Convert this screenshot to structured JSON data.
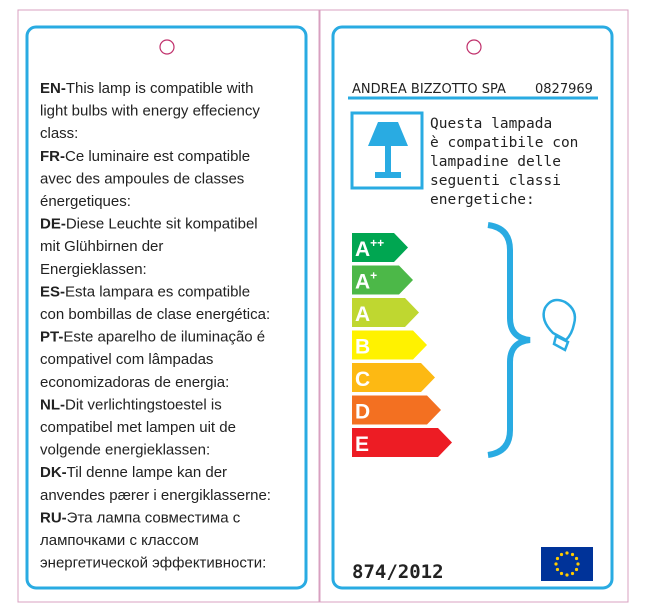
{
  "left": {
    "languages": [
      {
        "code": "EN-",
        "lines": [
          "This lamp is compatible with",
          "light bulbs with energy effeciency",
          "class:"
        ]
      },
      {
        "code": "FR-",
        "lines": [
          "Ce luminaire est compatible",
          "avec des ampoules de classes",
          "énergetiques:"
        ]
      },
      {
        "code": "DE-",
        "lines": [
          "Diese Leuchte sit kompatibel",
          "mit Glühbirnen der",
          "Energieklassen:"
        ]
      },
      {
        "code": "ES-",
        "lines": [
          "Esta lampara es compatible",
          "con bombillas de clase energética:"
        ]
      },
      {
        "code": "PT-",
        "lines": [
          "Este aparelho de iluminação é",
          "compativel com lâmpadas",
          "economizadoras de energia:"
        ]
      },
      {
        "code": "NL-",
        "lines": [
          "Dit verlichtingstoestel is",
          "compatibel met lampen uit de",
          "volgende energieklassen:"
        ]
      },
      {
        "code": "DK-",
        "lines": [
          "Til denne lampe kan der",
          "anvendes pærer i energiklasserne:"
        ]
      },
      {
        "code": "RU-",
        "lines": [
          "Эта лампа совместима с",
          "лампочками с классом",
          "энергетической эффективности:"
        ]
      }
    ]
  },
  "right": {
    "company": "ANDREA BIZZOTTO SPA",
    "code": "0827969",
    "description": [
      "Questa lampada",
      "è compatibile con",
      "lampadine delle",
      "seguenti classi",
      "energetiche:"
    ],
    "classes": [
      {
        "letter": "A",
        "sup": "++",
        "color": "#00a651"
      },
      {
        "letter": "A",
        "sup": "+",
        "color": "#4cb848"
      },
      {
        "letter": "A",
        "color": "#bfd730"
      },
      {
        "letter": "B",
        "color": "#fff200"
      },
      {
        "letter": "C",
        "color": "#fdb913"
      },
      {
        "letter": "D",
        "color": "#f37021"
      },
      {
        "letter": "E",
        "color": "#ed1c24"
      }
    ],
    "regulation": "874/2012"
  }
}
